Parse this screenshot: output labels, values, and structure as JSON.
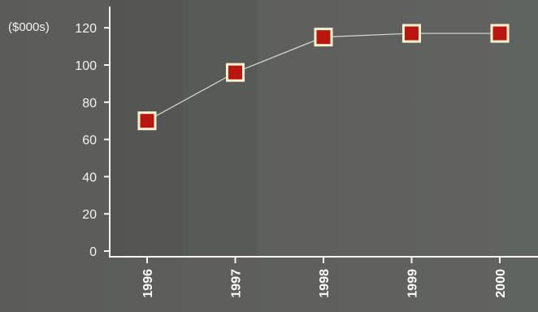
{
  "chart_data": {
    "type": "line",
    "unit_label": "($000s)",
    "categories": [
      "1996",
      "1997",
      "1998",
      "1999",
      "2000"
    ],
    "series": [
      {
        "values": [
          70,
          96,
          115,
          117,
          117
        ]
      }
    ],
    "ylim": [
      0,
      130
    ],
    "yticks": [
      0,
      20,
      40,
      60,
      80,
      100,
      120
    ],
    "grid": false,
    "legend": "none",
    "colors": {
      "background": "#5a5b59",
      "axis": "#f4f4f0",
      "line": "#d8d8d4",
      "marker_fill": "#b8160f",
      "marker_border": "#fbf3d2",
      "text": "#f2f2ee"
    }
  }
}
